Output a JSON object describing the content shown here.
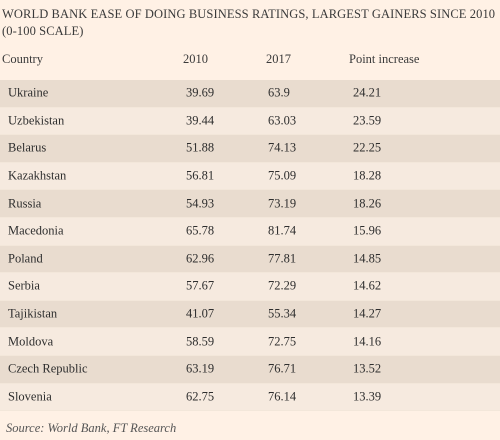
{
  "chart_data": {
    "type": "table",
    "title": "WORLD BANK EASE OF DOING BUSINESS RATINGS, LARGEST GAINERS SINCE 2010 (0-100 SCALE)",
    "columns": [
      "Country",
      "2010",
      "2017",
      "Point increase"
    ],
    "rows": [
      {
        "country": "Ukraine",
        "y2010": "39.69",
        "y2017": "63.9",
        "increase": "24.21"
      },
      {
        "country": "Uzbekistan",
        "y2010": "39.44",
        "y2017": "63.03",
        "increase": "23.59"
      },
      {
        "country": "Belarus",
        "y2010": "51.88",
        "y2017": "74.13",
        "increase": "22.25"
      },
      {
        "country": "Kazakhstan",
        "y2010": "56.81",
        "y2017": "75.09",
        "increase": "18.28"
      },
      {
        "country": "Russia",
        "y2010": "54.93",
        "y2017": "73.19",
        "increase": "18.26"
      },
      {
        "country": "Macedonia",
        "y2010": "65.78",
        "y2017": "81.74",
        "increase": "15.96"
      },
      {
        "country": "Poland",
        "y2010": "62.96",
        "y2017": "77.81",
        "increase": "14.85"
      },
      {
        "country": "Serbia",
        "y2010": "57.67",
        "y2017": "72.29",
        "increase": "14.62"
      },
      {
        "country": "Tajikistan",
        "y2010": "41.07",
        "y2017": "55.34",
        "increase": "14.27"
      },
      {
        "country": "Moldova",
        "y2010": "58.59",
        "y2017": "72.75",
        "increase": "14.16"
      },
      {
        "country": "Czech Republic",
        "y2010": "63.19",
        "y2017": "76.71",
        "increase": "13.52"
      },
      {
        "country": "Slovenia",
        "y2010": "62.75",
        "y2017": "76.14",
        "increase": "13.39"
      }
    ],
    "source": "Source: World Bank, FT Research"
  },
  "colors": {
    "background": "#fff1e5",
    "row_dark": "#e9dccf",
    "row_light": "#f6eadf",
    "text": "#333333"
  }
}
